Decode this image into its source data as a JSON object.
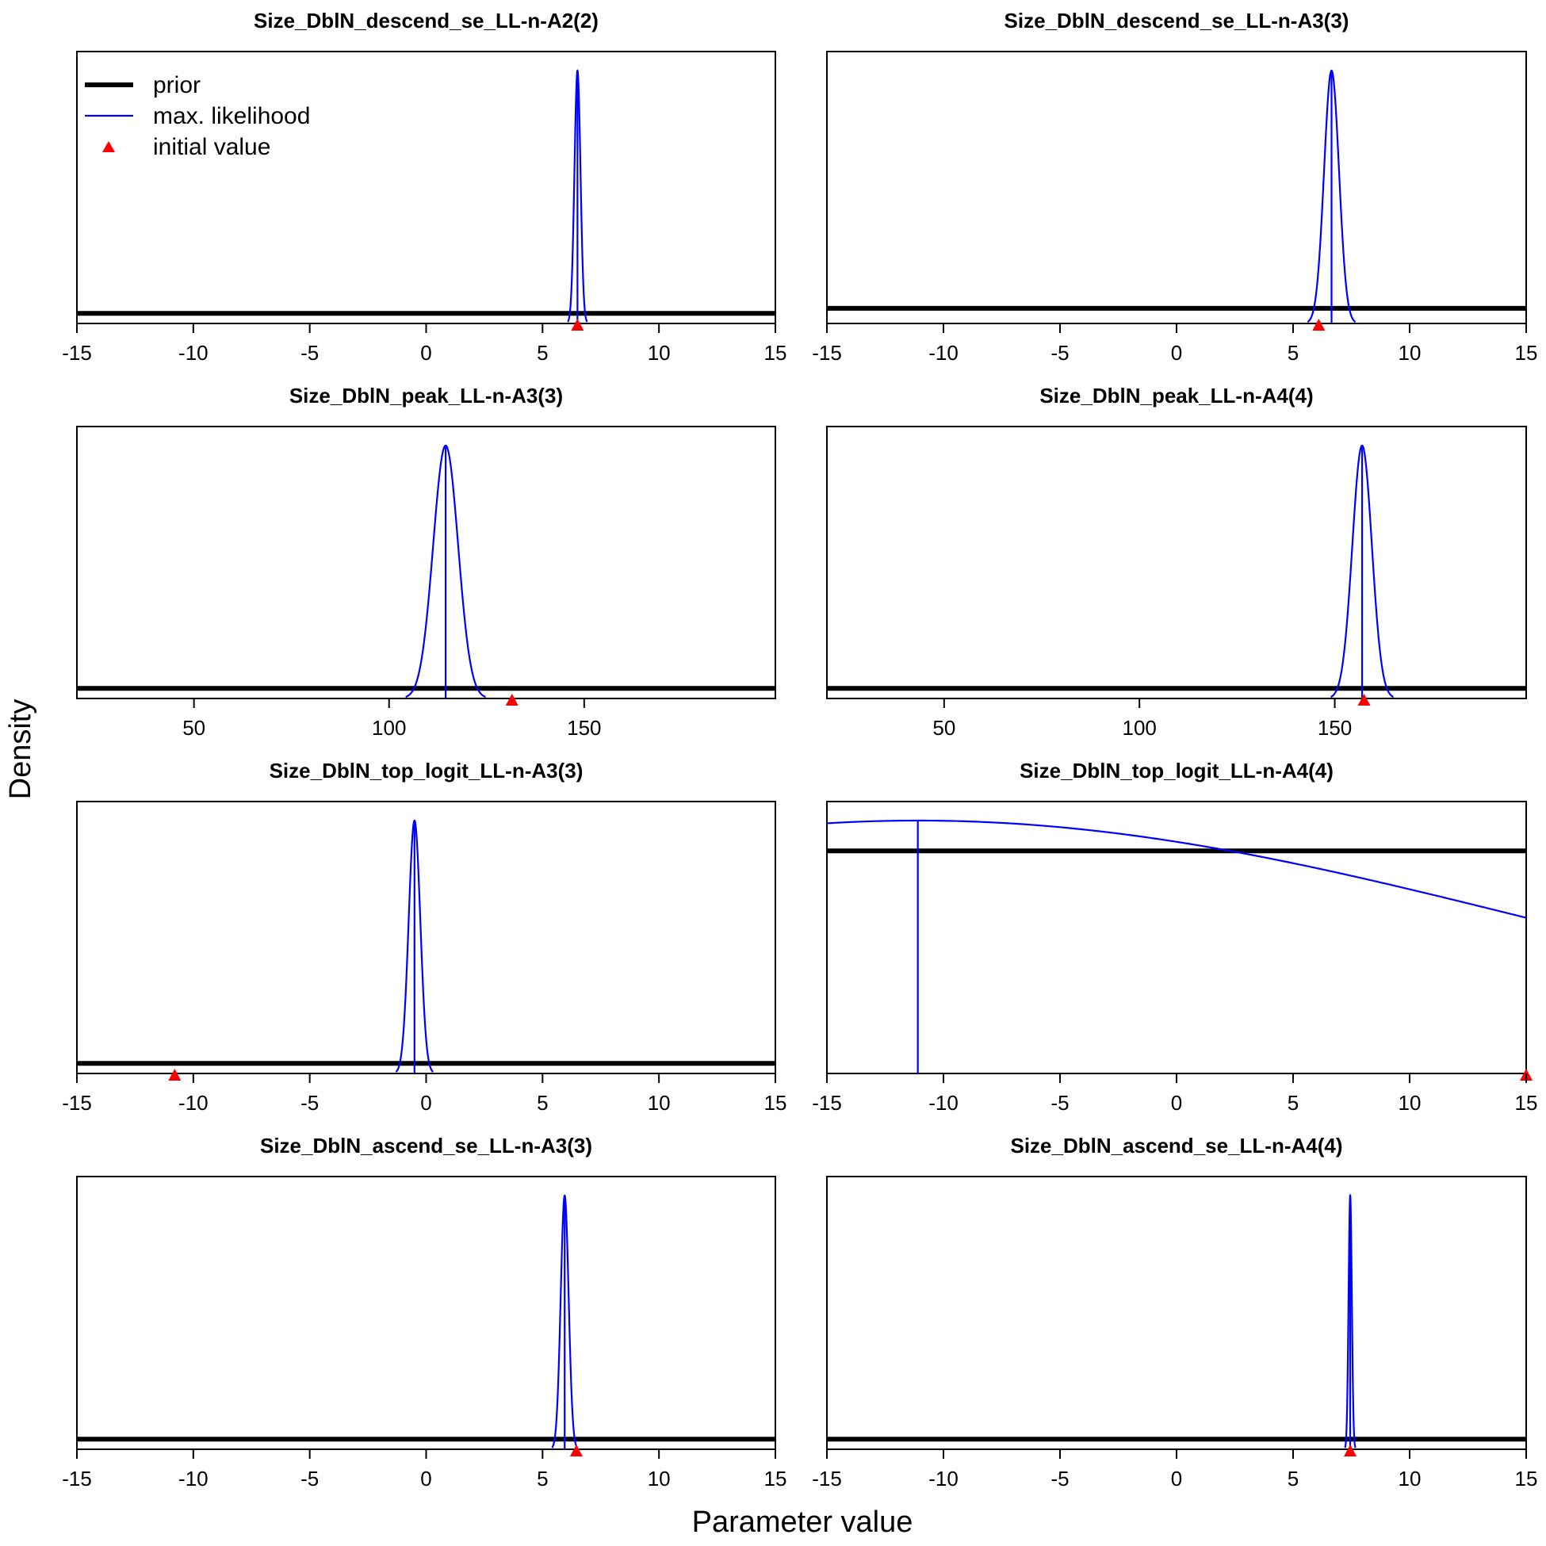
{
  "figure": {
    "xlabel": "Parameter value",
    "ylabel": "Density",
    "colors": {
      "prior": "#000000",
      "mle": "#0000ff",
      "initial": "#ff0000",
      "axis": "#000000"
    }
  },
  "legend": {
    "placement": "top-left of first panel",
    "items": [
      {
        "label": "prior",
        "kind": "thick-line",
        "color": "#000000"
      },
      {
        "label": "max. likelihood",
        "kind": "thin-line",
        "color": "#0000ff"
      },
      {
        "label": "initial value",
        "kind": "triangle",
        "color": "#ff0000"
      }
    ]
  },
  "chart_data": [
    {
      "type": "line",
      "title": "Size_DblN_descend_se_LL-n-A2(2)",
      "xlim": [
        -15,
        15
      ],
      "xticks": [
        "-15",
        "-10",
        "-5",
        "0",
        "5",
        "10",
        "15"
      ],
      "prior_level": 0.04,
      "mle": {
        "mean": 6.5,
        "sd": 0.13,
        "peak": 1.0
      },
      "initial": 6.5,
      "grid": false
    },
    {
      "type": "line",
      "title": "Size_DblN_descend_se_LL-n-A3(3)",
      "xlim": [
        -15,
        15
      ],
      "xticks": [
        "-15",
        "-10",
        "-5",
        "0",
        "5",
        "10",
        "15"
      ],
      "prior_level": 0.06,
      "mle": {
        "mean": 6.65,
        "sd": 0.32,
        "peak": 1.0
      },
      "initial": 6.1,
      "grid": false
    },
    {
      "type": "line",
      "title": "Size_DblN_peak_LL-n-A3(3)",
      "xlim": [
        20,
        199
      ],
      "xticks": [
        "50",
        "100",
        "150"
      ],
      "prior_level": 0.04,
      "mle": {
        "mean": 114.5,
        "sd": 3.2,
        "peak": 1.0
      },
      "initial": 131.5,
      "grid": false
    },
    {
      "type": "line",
      "title": "Size_DblN_peak_LL-n-A4(4)",
      "xlim": [
        20,
        199
      ],
      "xticks": [
        "50",
        "100",
        "150"
      ],
      "prior_level": 0.04,
      "mle": {
        "mean": 157,
        "sd": 2.5,
        "peak": 1.0
      },
      "initial": 157.5,
      "grid": false
    },
    {
      "type": "line",
      "title": "Size_DblN_top_logit_LL-n-A3(3)",
      "xlim": [
        -15,
        15
      ],
      "xticks": [
        "-15",
        "-10",
        "-5",
        "0",
        "5",
        "10",
        "15"
      ],
      "prior_level": 0.04,
      "mle": {
        "mean": -0.5,
        "sd": 0.25,
        "peak": 1.0
      },
      "initial": -10.8,
      "grid": false
    },
    {
      "type": "line",
      "title": "Size_DblN_top_logit_LL-n-A4(4)",
      "xlim": [
        -15,
        15
      ],
      "xticks": [
        "-15",
        "-10",
        "-5",
        "0",
        "5",
        "10",
        "15"
      ],
      "prior_level": 0.88,
      "mle": {
        "mean": -11.1,
        "sd": 26.5,
        "peak": 1.0
      },
      "initial": 15,
      "grid": false
    },
    {
      "type": "line",
      "title": "Size_DblN_ascend_se_LL-n-A3(3)",
      "xlim": [
        -15,
        15
      ],
      "xticks": [
        "-15",
        "-10",
        "-5",
        "0",
        "5",
        "10",
        "15"
      ],
      "prior_level": 0.04,
      "mle": {
        "mean": 5.95,
        "sd": 0.17,
        "peak": 1.0
      },
      "initial": 6.45,
      "grid": false
    },
    {
      "type": "line",
      "title": "Size_DblN_ascend_se_LL-n-A4(4)",
      "xlim": [
        -15,
        15
      ],
      "xticks": [
        "-15",
        "-10",
        "-5",
        "0",
        "5",
        "10",
        "15"
      ],
      "prior_level": 0.04,
      "mle": {
        "mean": 7.45,
        "sd": 0.07,
        "peak": 1.0
      },
      "initial": 7.45,
      "grid": false
    }
  ]
}
